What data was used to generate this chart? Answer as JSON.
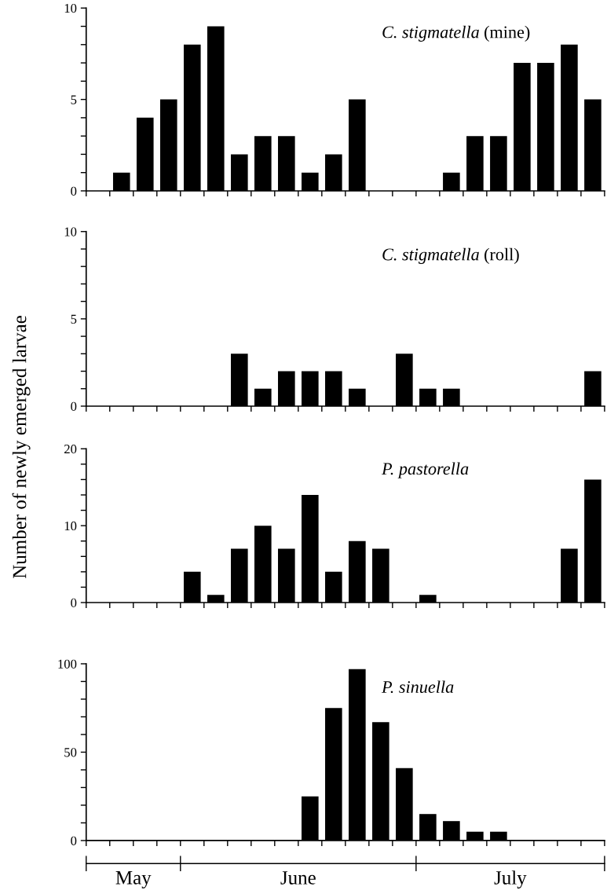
{
  "chart_data": [
    {
      "type": "bar",
      "title": "C. stigmatella",
      "subtitle": "(mine)",
      "categories": [
        null,
        null,
        null,
        null,
        null,
        null,
        null,
        null,
        null,
        null,
        null,
        null,
        null,
        null,
        null,
        null,
        null,
        null,
        null,
        null,
        null,
        null
      ],
      "values": [
        0,
        1,
        4,
        5,
        8,
        9,
        2,
        3,
        3,
        1,
        2,
        5,
        0,
        0,
        0,
        1,
        3,
        3,
        7,
        7,
        8,
        5
      ],
      "color": "#000000",
      "ylim": [
        0,
        10
      ],
      "yticks": [
        0,
        {
          "value": 1,
          "label": null
        },
        {
          "value": 2,
          "label": null
        },
        {
          "value": 3,
          "label": null
        },
        {
          "value": 4,
          "label": null
        },
        5,
        {
          "value": 6,
          "label": null
        },
        {
          "value": 7,
          "label": null
        },
        {
          "value": 8,
          "label": null
        },
        {
          "value": 9,
          "label": null
        },
        10
      ],
      "tick_labels": "y"
    },
    {
      "type": "bar",
      "title": "C. stigmatella",
      "subtitle": "(roll)",
      "ylabel": "Number of newly emerged larvae",
      "categories": [
        null,
        null,
        null,
        null,
        null,
        null,
        null,
        null,
        null,
        null,
        null,
        null,
        null,
        null,
        null,
        null,
        null,
        null,
        null,
        null,
        null,
        null
      ],
      "values": [
        0,
        0,
        0,
        0,
        0,
        0,
        3,
        1,
        2,
        2,
        2,
        1,
        0,
        3,
        1,
        1,
        0,
        0,
        0,
        0,
        0,
        2
      ],
      "color": "#000000",
      "ylim": [
        0,
        10
      ],
      "yticks": [
        0,
        {
          "value": 1,
          "label": null
        },
        {
          "value": 2,
          "label": null
        },
        {
          "value": 3,
          "label": null
        },
        {
          "value": 4,
          "label": null
        },
        5,
        {
          "value": 6,
          "label": null
        },
        {
          "value": 7,
          "label": null
        },
        {
          "value": 8,
          "label": null
        },
        {
          "value": 9,
          "label": null
        },
        10
      ],
      "tick_labels": "y"
    },
    {
      "type": "bar",
      "title": "P. pastorella",
      "categories": [
        null,
        null,
        null,
        null,
        null,
        null,
        null,
        null,
        null,
        null,
        null,
        null,
        null,
        null,
        null,
        null,
        null,
        null,
        null,
        null,
        null,
        null
      ],
      "values": [
        0,
        0,
        0,
        0,
        4,
        1,
        7,
        10,
        7,
        14,
        4,
        8,
        7,
        0,
        1,
        0,
        0,
        0,
        0,
        0,
        7,
        16
      ],
      "color": "#000000",
      "ylim": [
        0,
        20
      ],
      "yticks": [
        0,
        {
          "value": 2,
          "label": null
        },
        {
          "value": 4,
          "label": null
        },
        {
          "value": 6,
          "label": null
        },
        {
          "value": 8,
          "label": null
        },
        10,
        {
          "value": 12,
          "label": null
        },
        {
          "value": 14,
          "label": null
        },
        {
          "value": 16,
          "label": null
        },
        {
          "value": 18,
          "label": null
        },
        20
      ],
      "tick_labels": "y"
    },
    {
      "type": "bar",
      "title": "P. sinuella",
      "categories": [
        null,
        null,
        null,
        null,
        null,
        null,
        null,
        null,
        null,
        null,
        null,
        null,
        null,
        null,
        null,
        null,
        null,
        null,
        null,
        null,
        null,
        null
      ],
      "values": [
        0,
        0,
        0,
        0,
        0,
        0,
        0,
        0,
        0,
        25,
        75,
        97,
        67,
        41,
        15,
        11,
        5,
        5,
        0,
        0,
        0,
        0
      ],
      "color": "#000000",
      "ylim": [
        0,
        100
      ],
      "yticks": [
        0,
        {
          "value": 10,
          "label": null
        },
        {
          "value": 20,
          "label": null
        },
        {
          "value": 30,
          "label": null
        },
        {
          "value": 40,
          "label": null
        },
        50,
        {
          "value": 60,
          "label": null
        },
        {
          "value": 70,
          "label": null
        },
        {
          "value": 80,
          "label": null
        },
        {
          "value": 90,
          "label": null
        },
        100
      ],
      "tick_labels": "y",
      "annotations": [
        "May",
        "June",
        "July"
      ]
    }
  ]
}
